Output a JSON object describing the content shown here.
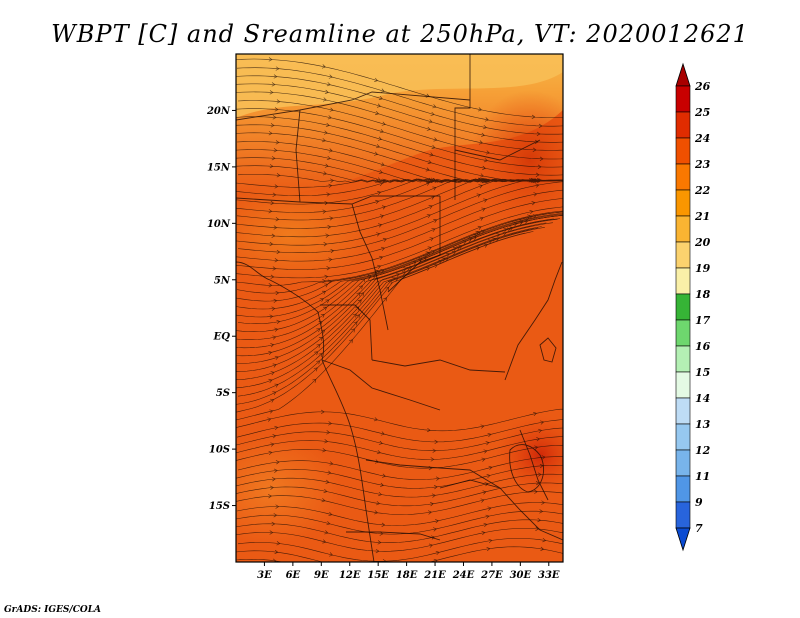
{
  "chart_data": {
    "type": "heatmap",
    "title": "WBPT [C] and Sreamline at 250hPa, VT: 2020012621",
    "variable": "WBPT [C]",
    "overlay": "Streamline",
    "level": "250hPa",
    "valid_time": "2020012621",
    "x_ticks": [
      "3E",
      "6E",
      "9E",
      "12E",
      "15E",
      "18E",
      "21E",
      "24E",
      "27E",
      "30E",
      "33E"
    ],
    "x_values": [
      3,
      6,
      9,
      12,
      15,
      18,
      21,
      24,
      27,
      30,
      33
    ],
    "y_ticks": [
      "20N",
      "15N",
      "10N",
      "5N",
      "EQ",
      "5S",
      "10S",
      "15S"
    ],
    "y_values": [
      20,
      15,
      10,
      5,
      0,
      -5,
      -10,
      -15
    ],
    "xlim": [
      0,
      34.5
    ],
    "ylim": [
      -20,
      25
    ],
    "colorbar": {
      "labels": [
        "26",
        "25",
        "24",
        "23",
        "22",
        "21",
        "20",
        "19",
        "18",
        "17",
        "16",
        "15",
        "14",
        "13",
        "12",
        "11",
        "9",
        "7"
      ],
      "colors": [
        "#a80000",
        "#c80000",
        "#e02c00",
        "#f05000",
        "#fa7800",
        "#fa9600",
        "#fab432",
        "#fbd26e",
        "#faf0a8",
        "#36b436",
        "#6ed76e",
        "#b4f0b4",
        "#e4fae4",
        "#bedcf5",
        "#96c8f0",
        "#78b4eb",
        "#5096e6",
        "#2864dc",
        "#0a4bd2"
      ]
    },
    "dominant_range": "22-24",
    "footer": "GrADS: IGES/COLA"
  }
}
